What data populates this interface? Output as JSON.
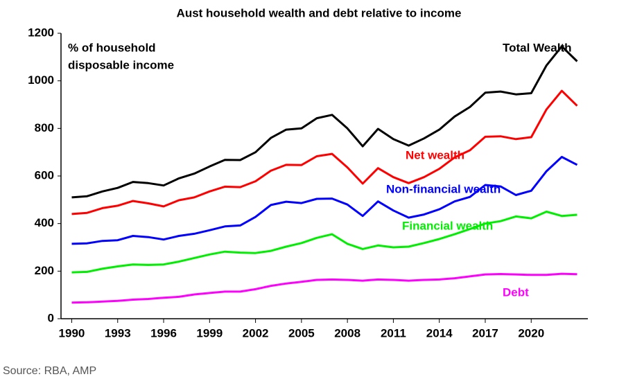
{
  "chart_data": {
    "type": "line",
    "title": "Aust household wealth and debt relative to income",
    "annotation": [
      "% of household",
      "disposable income"
    ],
    "source": "Source: RBA, AMP",
    "x": [
      1990,
      1991,
      1992,
      1993,
      1994,
      1995,
      1996,
      1997,
      1998,
      1999,
      2000,
      2001,
      2002,
      2003,
      2004,
      2005,
      2006,
      2007,
      2008,
      2009,
      2010,
      2011,
      2012,
      2013,
      2014,
      2015,
      2016,
      2017,
      2018,
      2019,
      2020,
      2021,
      2022,
      2023
    ],
    "series": [
      {
        "name": "Total Wealth",
        "color": "#000000",
        "values": [
          510,
          515,
          535,
          550,
          575,
          570,
          560,
          590,
          610,
          640,
          668,
          667,
          700,
          760,
          795,
          800,
          843,
          857,
          800,
          725,
          798,
          755,
          728,
          758,
          795,
          850,
          890,
          950,
          955,
          943,
          948,
          1065,
          1145,
          1082
        ]
      },
      {
        "name": "Net wealth",
        "color": "#ff0000",
        "values": [
          440,
          445,
          465,
          475,
          495,
          485,
          472,
          498,
          510,
          535,
          555,
          553,
          578,
          622,
          647,
          646,
          683,
          693,
          636,
          568,
          633,
          595,
          570,
          595,
          630,
          678,
          708,
          765,
          767,
          755,
          763,
          880,
          958,
          895
        ]
      },
      {
        "name": "Non-financial wealth",
        "color": "#0000ff",
        "values": [
          315,
          317,
          327,
          330,
          348,
          343,
          333,
          348,
          357,
          372,
          388,
          392,
          428,
          478,
          492,
          486,
          504,
          505,
          480,
          432,
          493,
          455,
          425,
          438,
          460,
          493,
          512,
          562,
          556,
          520,
          538,
          620,
          680,
          647
        ]
      },
      {
        "name": "Financial wealth",
        "color": "#00ee00",
        "values": [
          195,
          197,
          210,
          220,
          228,
          226,
          228,
          240,
          255,
          270,
          282,
          278,
          276,
          285,
          303,
          318,
          340,
          355,
          315,
          293,
          308,
          300,
          303,
          318,
          335,
          355,
          377,
          400,
          410,
          430,
          422,
          450,
          432,
          437
        ]
      },
      {
        "name": "Debt",
        "color": "#ff00ff",
        "values": [
          68,
          69,
          72,
          75,
          80,
          83,
          88,
          92,
          102,
          108,
          114,
          114,
          124,
          138,
          148,
          155,
          163,
          165,
          163,
          160,
          165,
          163,
          160,
          163,
          165,
          170,
          178,
          186,
          188,
          186,
          184,
          184,
          189,
          187
        ]
      }
    ],
    "xlim": [
      1989.3,
      2023.7
    ],
    "xticks": [
      1990,
      1993,
      1996,
      1999,
      2002,
      2005,
      2008,
      2011,
      2014,
      2017,
      2020
    ],
    "ylim": [
      0,
      1200
    ],
    "yticks": [
      0,
      200,
      400,
      600,
      800,
      1000,
      1200
    ],
    "grid": false
  }
}
